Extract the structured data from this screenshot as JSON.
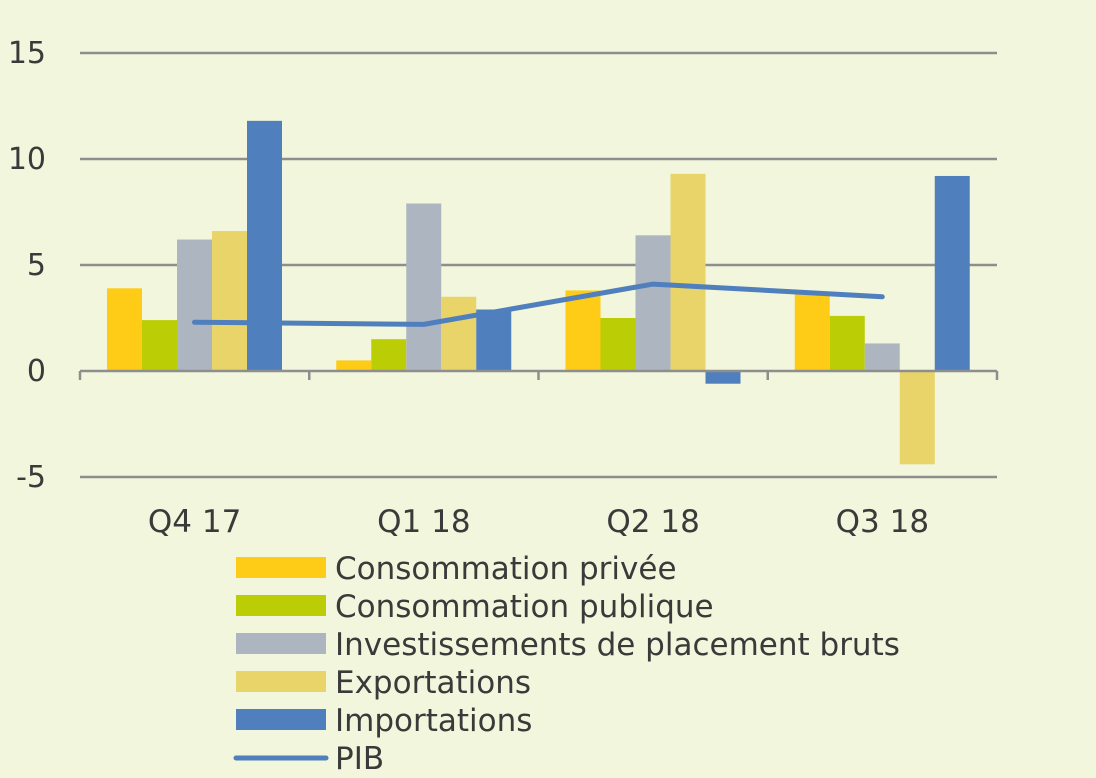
{
  "chart_data": {
    "type": "bar",
    "categories": [
      "Q4 17",
      "Q1 18",
      "Q2 18",
      "Q3 18"
    ],
    "series": [
      {
        "name": "Consommation privée",
        "values": [
          3.9,
          0.5,
          3.8,
          3.7
        ],
        "color": "#fecb16"
      },
      {
        "name": "Consommation publique",
        "values": [
          2.4,
          1.5,
          2.5,
          2.6
        ],
        "color": "#bacd05"
      },
      {
        "name": "Investissements de placement bruts",
        "values": [
          6.2,
          7.9,
          6.4,
          1.3
        ],
        "color": "#adb5c1"
      },
      {
        "name": "Exportations",
        "values": [
          6.6,
          3.5,
          9.3,
          -4.4
        ],
        "color": "#e8d468"
      },
      {
        "name": "Importations",
        "values": [
          11.8,
          2.9,
          -0.6,
          9.2
        ],
        "color": "#4f7fbd"
      }
    ],
    "line": {
      "name": "PIB",
      "values": [
        2.3,
        2.2,
        4.1,
        3.5
      ],
      "color": "#4f7fbd"
    },
    "yticks": [
      15,
      10,
      5,
      0,
      -5
    ],
    "ytick_labels": [
      "15",
      "10",
      "5",
      "0",
      "-5"
    ],
    "ylim": [
      -5,
      15
    ],
    "grid": true,
    "legend_position": "bottom"
  }
}
